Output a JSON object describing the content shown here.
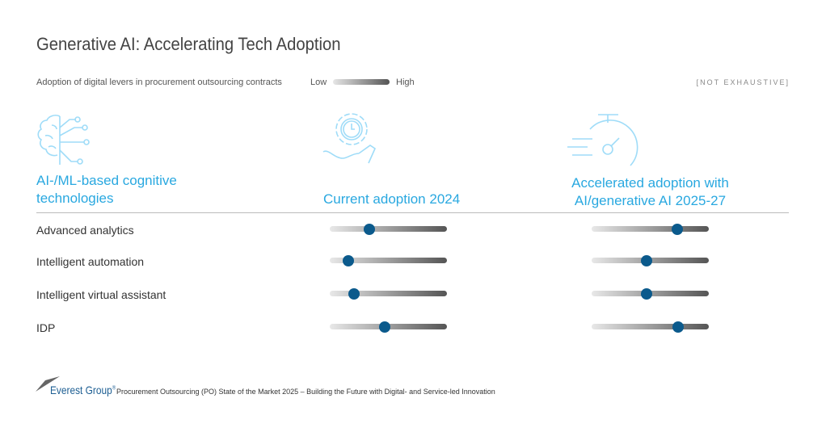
{
  "title": "Generative AI: Accelerating Tech Adoption",
  "legend": {
    "subtitle": "Adoption of digital levers in procurement outsourcing contracts",
    "low": "Low",
    "high": "High",
    "note": "[NOT EXHAUSTIVE]"
  },
  "columns": {
    "technology": "AI-/ML-based cognitive technologies",
    "current": "Current adoption 2024",
    "accelerated": "Accelerated adoption with AI/generative AI 2025-27"
  },
  "icons": {
    "technology": "brain-circuit-icon",
    "current": "gear-clock-hand-icon",
    "accelerated": "stopwatch-speed-icon"
  },
  "rows": [
    {
      "label": "Advanced analytics",
      "current": 0.34,
      "accelerated": 0.73
    },
    {
      "label": "Intelligent automation",
      "current": 0.16,
      "accelerated": 0.47
    },
    {
      "label": "Intelligent virtual assistant",
      "current": 0.21,
      "accelerated": 0.47
    },
    {
      "label": "IDP",
      "current": 0.47,
      "accelerated": 0.74
    }
  ],
  "footer": {
    "logo": "Everest Group",
    "registered": "®",
    "text": "Procurement Outsourcing (PO) State of the Market 2025 – Building the Future with Digital- and Service-led Innovation"
  },
  "colors": {
    "accent": "#29a8e0",
    "knob": "#0b5a8c",
    "icon": "#9fdcf8"
  }
}
